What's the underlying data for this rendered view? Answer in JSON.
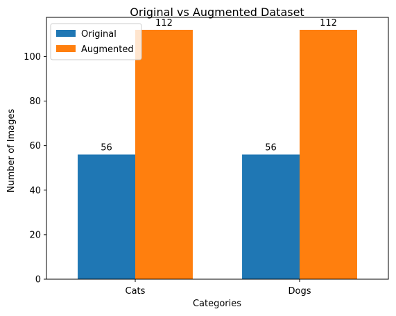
{
  "chart_data": {
    "type": "bar",
    "title": "Original vs Augmented Dataset",
    "xlabel": "Categories",
    "ylabel": "Number of Images",
    "categories": [
      "Cats",
      "Dogs"
    ],
    "series": [
      {
        "name": "Original",
        "values": [
          56,
          56
        ],
        "color": "#1f77b4"
      },
      {
        "name": "Augmented",
        "values": [
          112,
          112
        ],
        "color": "#ff7f0e"
      }
    ],
    "ylim": [
      0,
      117.6
    ],
    "yticks": [
      0,
      20,
      40,
      60,
      80,
      100
    ],
    "grid": false,
    "legend_position": "top-left"
  }
}
